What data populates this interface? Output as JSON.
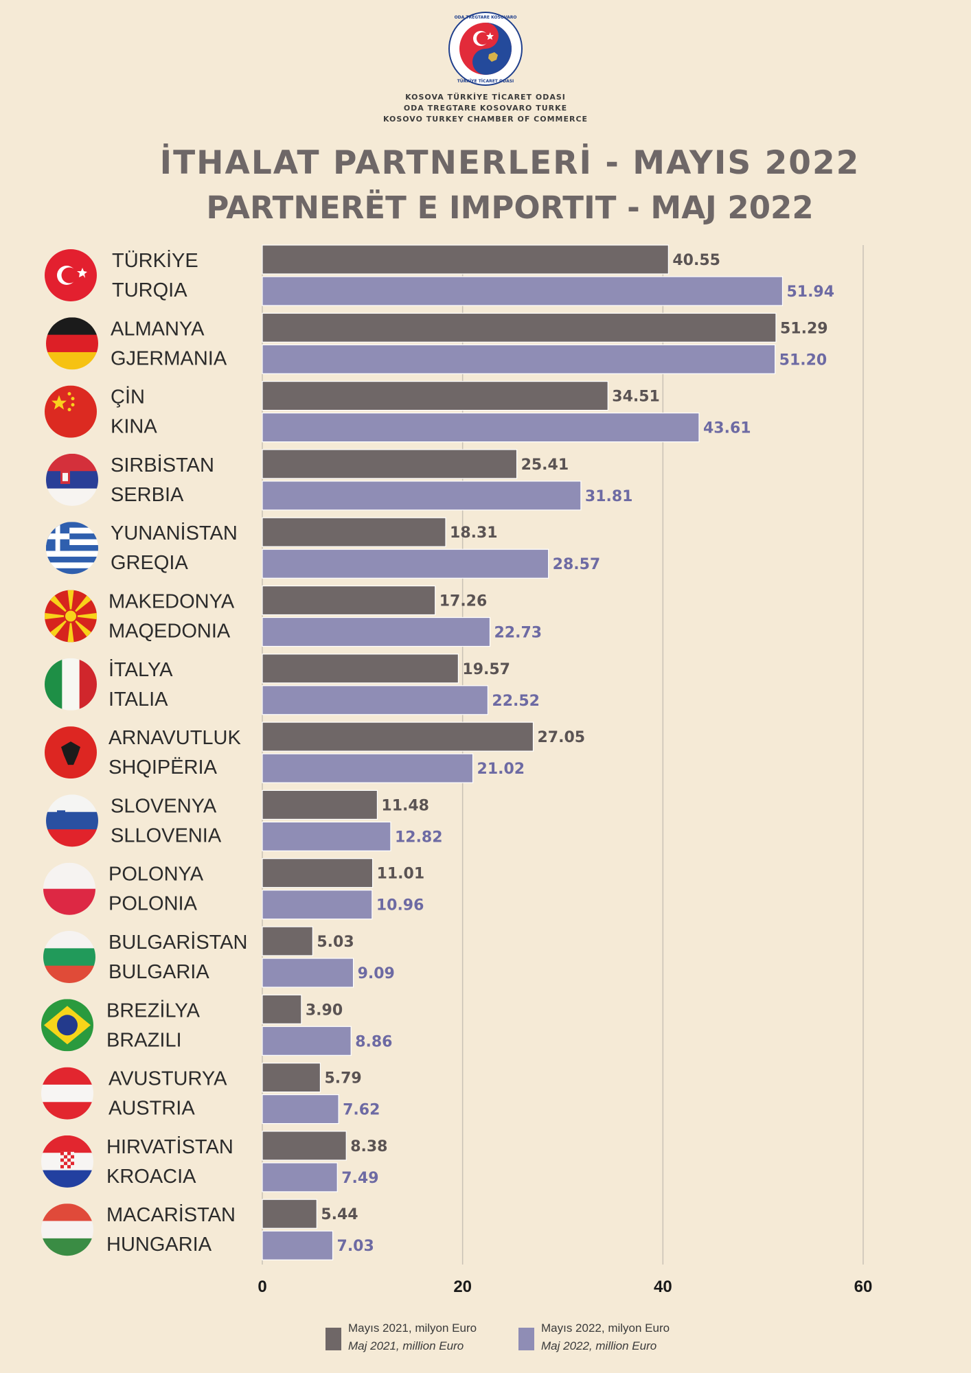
{
  "header": {
    "logo_ring_text": "ODA TREGTARE KOSOVARO TURKE · KOSOVA TÜRKİYE TİCARET ODASI",
    "org_lines": [
      "KOSOVA TÜRKİYE TİCARET ODASI",
      "ODA TREGTARE KOSOVARO TURKE",
      "KOSOVO TURKEY CHAMBER OF COMMERCE"
    ],
    "title_tr": "İTHALAT PARTNERLERİ - MAYIS 2022",
    "title_sq": "PARTNERËT E IMPORTIT - MAJ 2022"
  },
  "colors": {
    "background": "#f5ead6",
    "series_2021": "#6f6767",
    "series_2022": "#8f8db5",
    "label_2021": "#5a5353",
    "label_2022": "#6d6aa3",
    "grid": "#c9c1b5"
  },
  "chart_data": {
    "type": "bar",
    "orientation": "horizontal",
    "categories": [
      {
        "tr": "TÜRKİYE",
        "sq": "TURQIA",
        "flag": "turkey-flag-icon"
      },
      {
        "tr": "ALMANYA",
        "sq": "GJERMANIA",
        "flag": "germany-flag-icon"
      },
      {
        "tr": "ÇİN",
        "sq": "KINA",
        "flag": "china-flag-icon"
      },
      {
        "tr": "SIRBİSTAN",
        "sq": "SERBIA",
        "flag": "serbia-flag-icon"
      },
      {
        "tr": "YUNANİSTAN",
        "sq": "GREQIA",
        "flag": "greece-flag-icon"
      },
      {
        "tr": "MAKEDONYA",
        "sq": "MAQEDONIA",
        "flag": "north-macedonia-flag-icon"
      },
      {
        "tr": "İTALYA",
        "sq": "ITALIA",
        "flag": "italy-flag-icon"
      },
      {
        "tr": "ARNAVUTLUK",
        "sq": "SHQIPËRIA",
        "flag": "albania-flag-icon"
      },
      {
        "tr": "SLOVENYA",
        "sq": "SLLOVENIA",
        "flag": "slovenia-flag-icon"
      },
      {
        "tr": "POLONYA",
        "sq": "POLONIA",
        "flag": "poland-flag-icon"
      },
      {
        "tr": "BULGARİSTAN",
        "sq": "BULGARIA",
        "flag": "bulgaria-flag-icon"
      },
      {
        "tr": "BREZİLYA",
        "sq": "BRAZILI",
        "flag": "brazil-flag-icon"
      },
      {
        "tr": "AVUSTURYA",
        "sq": "AUSTRIA",
        "flag": "austria-flag-icon"
      },
      {
        "tr": "HIRVATİSTAN",
        "sq": "KROACIA",
        "flag": "croatia-flag-icon"
      },
      {
        "tr": "MACARİSTAN",
        "sq": "HUNGARIA",
        "flag": "hungary-flag-icon"
      }
    ],
    "series": [
      {
        "name": "Mayıs 2021, milyon Euro",
        "name_sq": "Maj 2021, million Euro",
        "values": [
          40.55,
          51.29,
          34.51,
          25.41,
          18.31,
          17.26,
          19.57,
          27.05,
          11.48,
          11.01,
          5.03,
          3.9,
          5.79,
          8.38,
          5.44
        ],
        "labels": [
          "40.55",
          "51.29",
          "34.51",
          "25.41",
          "18.31",
          "17.26",
          "19.57",
          "27.05",
          "11.48",
          "11.01",
          "5.03",
          "3.90",
          "5.79",
          "8.38",
          "5.44"
        ]
      },
      {
        "name": "Mayıs 2022, milyon Euro",
        "name_sq": "Maj 2022, million Euro",
        "values": [
          51.94,
          51.2,
          43.61,
          31.81,
          28.57,
          22.73,
          22.52,
          21.02,
          12.82,
          10.96,
          9.09,
          8.86,
          7.62,
          7.49,
          7.03
        ],
        "labels": [
          "51.94",
          "51.20",
          "43.61",
          "31.81",
          "28.57",
          "22.73",
          "22.52",
          "21.02",
          "12.82",
          "10.96",
          "9.09",
          "8.86",
          "7.62",
          "7.49",
          "7.03"
        ]
      }
    ],
    "x_ticks": [
      0,
      20,
      40,
      60
    ],
    "xlim": [
      0,
      60
    ],
    "grid": true,
    "legend_position": "bottom"
  }
}
